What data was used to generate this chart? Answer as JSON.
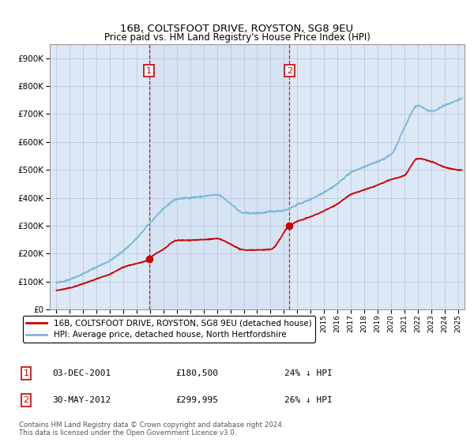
{
  "title": "16B, COLTSFOOT DRIVE, ROYSTON, SG8 9EU",
  "subtitle": "Price paid vs. HM Land Registry's House Price Index (HPI)",
  "hpi_color": "#7ab8d9",
  "price_color": "#cc0000",
  "background_color": "#ffffff",
  "plot_bg_color": "#dce8f5",
  "grid_color": "#b0c4d8",
  "sale1_x": 2001.92,
  "sale1_y": 180500,
  "sale1_label": "1",
  "sale1_date": "03-DEC-2001",
  "sale1_price": "£180,500",
  "sale1_hpi": "24% ↓ HPI",
  "sale2_x": 2012.41,
  "sale2_y": 299995,
  "sale2_label": "2",
  "sale2_date": "30-MAY-2012",
  "sale2_price": "£299,995",
  "sale2_hpi": "26% ↓ HPI",
  "ylim": [
    0,
    950000
  ],
  "xlim": [
    1994.5,
    2025.5
  ],
  "yticks": [
    0,
    100000,
    200000,
    300000,
    400000,
    500000,
    600000,
    700000,
    800000,
    900000
  ],
  "legend_line1": "16B, COLTSFOOT DRIVE, ROYSTON, SG8 9EU (detached house)",
  "legend_line2": "HPI: Average price, detached house, North Hertfordshire",
  "footer": "Contains HM Land Registry data © Crown copyright and database right 2024.\nThis data is licensed under the Open Government Licence v3.0.",
  "hpi_curve_x": [
    1995,
    1996,
    1997,
    1998,
    1999,
    2000,
    2001,
    2002,
    2003,
    2004,
    2005,
    2006,
    2007,
    2008,
    2009,
    2010,
    2011,
    2012,
    2013,
    2014,
    2015,
    2016,
    2017,
    2018,
    2019,
    2020,
    2021,
    2022,
    2023,
    2024,
    2025
  ],
  "hpi_curve_y": [
    95000,
    108000,
    128000,
    152000,
    175000,
    210000,
    255000,
    310000,
    360000,
    395000,
    400000,
    405000,
    410000,
    380000,
    345000,
    345000,
    350000,
    355000,
    375000,
    395000,
    420000,
    450000,
    490000,
    510000,
    530000,
    555000,
    650000,
    730000,
    710000,
    730000,
    750000
  ],
  "price_curve_x": [
    1995,
    1996,
    1997,
    1998,
    1999,
    2000,
    2001.92,
    2002,
    2003,
    2004,
    2005,
    2006,
    2007,
    2008,
    2009,
    2010,
    2011,
    2012.41,
    2013,
    2014,
    2015,
    2016,
    2017,
    2018,
    2019,
    2020,
    2021,
    2022,
    2023,
    2024,
    2025
  ],
  "price_curve_y": [
    68000,
    77000,
    92000,
    109000,
    126000,
    151000,
    180500,
    185000,
    215000,
    247000,
    248000,
    250000,
    253000,
    234000,
    213000,
    213000,
    215000,
    299995,
    315000,
    332000,
    353000,
    378000,
    411000,
    428000,
    445000,
    465000,
    480000,
    540000,
    530000,
    510000,
    500000
  ]
}
